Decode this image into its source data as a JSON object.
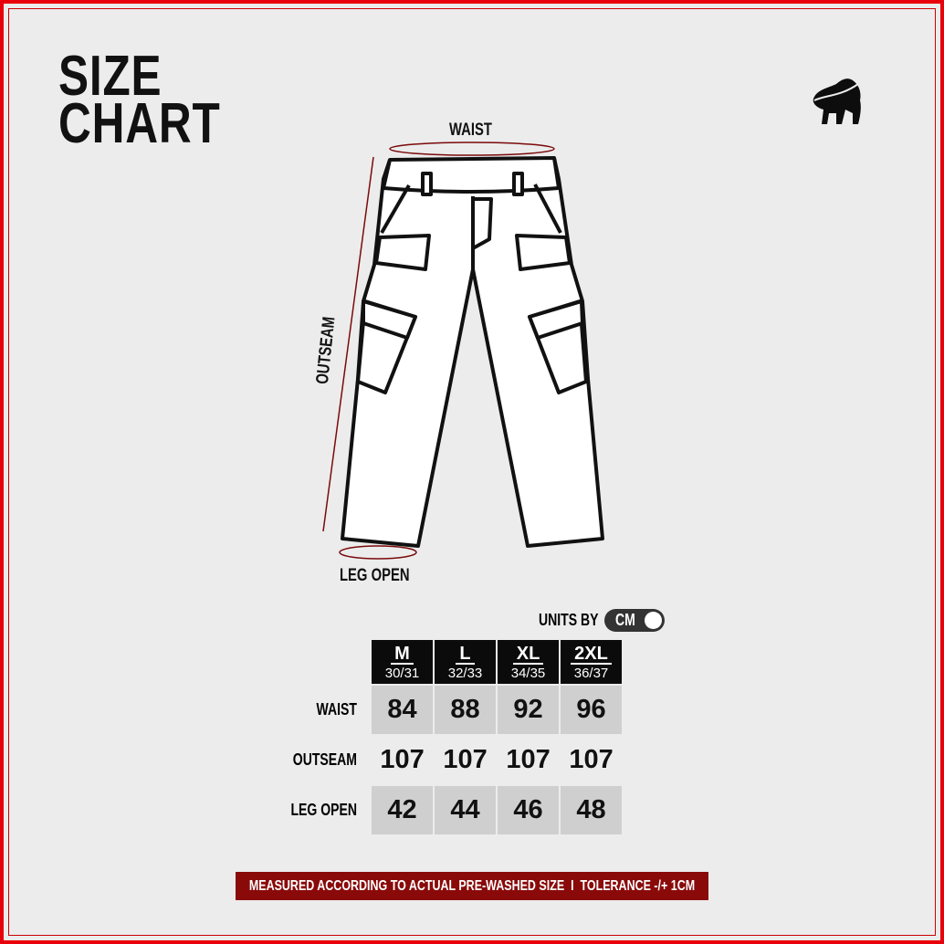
{
  "title": {
    "line1": "SIZE",
    "line2": "CHART"
  },
  "brand_logo": "gorilla-logo",
  "colors": {
    "accent": "#8a0a0a",
    "frame": "#e8000b",
    "header_bg": "#0b0b0b",
    "cell_bg": "#cfcfcf"
  },
  "diagram": {
    "waist": "WAIST",
    "outseam": "OUTSEAM",
    "leg_open": "LEG OPEN"
  },
  "units": {
    "label": "UNITS BY",
    "value": "CM"
  },
  "table": {
    "sizes": [
      {
        "size": "M",
        "waist_in": "30/31"
      },
      {
        "size": "L",
        "waist_in": "32/33"
      },
      {
        "size": "XL",
        "waist_in": "34/35"
      },
      {
        "size": "2XL",
        "waist_in": "36/37"
      }
    ],
    "rows": [
      {
        "label": "WAIST",
        "values": [
          "84",
          "88",
          "92",
          "96"
        ]
      },
      {
        "label": "OUTSEAM",
        "values": [
          "107",
          "107",
          "107",
          "107"
        ]
      },
      {
        "label": "LEG OPEN",
        "values": [
          "42",
          "44",
          "46",
          "48"
        ]
      }
    ]
  },
  "footer": "MEASURED ACCORDING TO ACTUAL PRE-WASHED SIZE  I  TOLERANCE -/+ 1CM"
}
